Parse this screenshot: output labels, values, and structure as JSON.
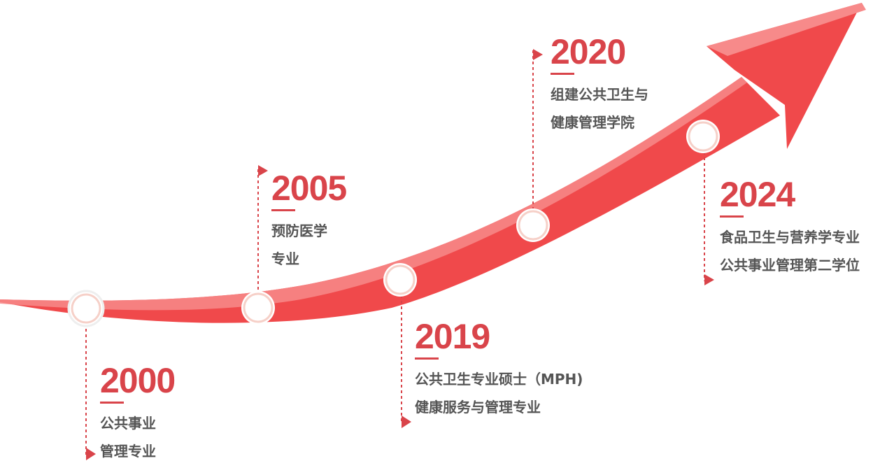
{
  "colors": {
    "arrow": "#f0494b",
    "arrow_highlight": "#f78a8a",
    "accent": "#d9444a",
    "text": "#555555"
  },
  "milestones": [
    {
      "year": "2000",
      "lines": [
        "公共事业",
        "管理专业"
      ]
    },
    {
      "year": "2005",
      "lines": [
        "预防医学",
        "专业"
      ]
    },
    {
      "year": "2019",
      "lines": [
        "公共卫生专业硕士（MPH)",
        "健康服务与管理专业"
      ]
    },
    {
      "year": "2020",
      "lines": [
        "组建公共卫生与",
        "健康管理学院"
      ]
    },
    {
      "year": "2024",
      "lines": [
        "食品卫生与营养学专业",
        "公共事业管理第二学位"
      ]
    }
  ]
}
